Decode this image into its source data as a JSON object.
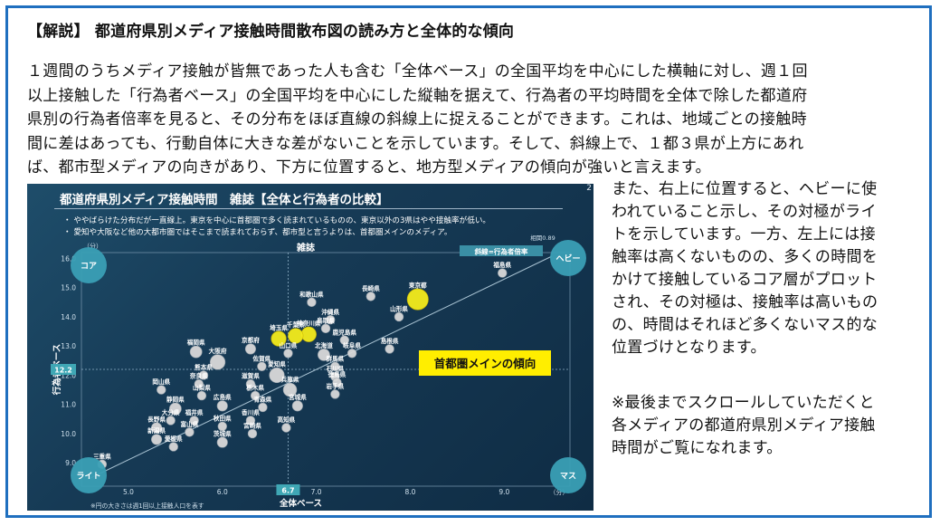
{
  "heading": "【解説】 都道府県別メディア接触時間散布図の読み方と全体的な傾向",
  "intro_lines": [
    "１週間のうちメディア接触が皆無であった人も含む「全体ベース」の全国平均を中心にした横軸に対し、週１回",
    "以上接触した「行為者ベース」の全国平均を中心にした縦軸を据えて、行為者の平均時間を全体で除した都道府",
    "県別の行為者倍率を見ると、その分布をほぼ直線の斜線上に捉えることができます。これは、地域ごとの接触時",
    "間に差はあっても、行動自体に大きな差がないことを示しています。そして、斜線上で、１都３県が上方にあれ",
    "ば、都市型メディアの向きがあり、下方に位置すると、地方型メディアの傾向が強いと言えます。"
  ],
  "side_lines": [
    "また、右上に位置すると、ヘビーに使",
    "われていること示し、その対極がライ",
    "トを示しています。一方、左上には接",
    "触率は高くないものの、多くの時間を",
    "かけて接触しているコア層がプロット",
    "され、その対極は、接触率は高いもの",
    "の、時間はそれほど多くないマス的な",
    "位置づけとなります。"
  ],
  "note_lines": [
    "※最後までスクロールしていただくと",
    "各メディアの都道府県別メディア接触",
    "時間がご覧になれます。"
  ],
  "slide": {
    "title": "都道府県別メディア接触時間　雑誌【全体と行為者の比較】",
    "page_number": "2",
    "bullets": [
      "・ ややばらけた分布だが一直線上。東京を中心に首都圏で多く読まれているものの、東京以外の3県はやや接触率が低い。",
      "・ 愛知や大阪など他の大都市圏ではそこまで読まれておらず、都市型と言うよりは、首都圏メインのメディア。"
    ]
  },
  "chart_data": {
    "type": "scatter",
    "title": "雑誌",
    "xlabel": "全体ベース",
    "ylabel": "行為者ベース",
    "unit_x": "（分）",
    "unit_y": "（分）",
    "xlim": [
      4.5,
      9.7
    ],
    "ylim": [
      8.2,
      16.2
    ],
    "x_ticks": [
      "5.0",
      "6.0",
      "7.0",
      "8.0",
      "9.0"
    ],
    "x_tick_values": [
      5,
      6,
      7,
      8,
      9
    ],
    "y_ticks": [
      "9.0",
      "10.0",
      "11.0",
      "12.0",
      "13.0",
      "14.0",
      "15.0",
      "16.0"
    ],
    "y_tick_values": [
      9,
      10,
      11,
      12,
      13,
      14,
      15,
      16
    ],
    "x_average": "6.7",
    "x_average_value": 6.7,
    "y_average": "12.2",
    "y_average_value": 12.2,
    "diagonal_label": "斜線=行為者倍率",
    "correlation_label": "相関0.89",
    "highlight_label": "首都圏メインの傾向",
    "corner_labels": {
      "top_left": "コア",
      "top_right": "ヘビー",
      "bottom_left": "ライト",
      "bottom_right": "マス"
    },
    "footnote": "※円の大きさは週1回以上接触人口を表す",
    "colors": {
      "highlight_box": "#ffee00",
      "metro_points": "#f4ec1c",
      "other_points": "#d9d9d9",
      "axis_marker": "#3fa7b5",
      "corner_circle": "#3a9fb5"
    },
    "points": [
      {
        "name": "東京都",
        "x": 8.08,
        "y": 14.6,
        "size": 5,
        "metro": true
      },
      {
        "name": "福島県",
        "x": 8.98,
        "y": 15.5,
        "size": 1
      },
      {
        "name": "長崎県",
        "x": 7.58,
        "y": 14.7,
        "size": 1
      },
      {
        "name": "和歌山県",
        "x": 6.95,
        "y": 14.5,
        "size": 1
      },
      {
        "name": "神奈川県",
        "x": 6.92,
        "y": 13.4,
        "size": 3,
        "metro": true
      },
      {
        "name": "千葉県",
        "x": 6.78,
        "y": 13.35,
        "size": 3,
        "metro": true
      },
      {
        "name": "埼玉県",
        "x": 6.6,
        "y": 13.25,
        "size": 3,
        "metro": true
      },
      {
        "name": "沖縄県",
        "x": 7.15,
        "y": 13.9,
        "size": 1
      },
      {
        "name": "山形県",
        "x": 7.88,
        "y": 14.0,
        "size": 1
      },
      {
        "name": "鳥取県",
        "x": 7.1,
        "y": 13.6,
        "size": 1
      },
      {
        "name": "鹿児島県",
        "x": 7.3,
        "y": 13.2,
        "size": 1
      },
      {
        "name": "京都府",
        "x": 6.3,
        "y": 12.9,
        "size": 1.5
      },
      {
        "name": "山口県",
        "x": 6.7,
        "y": 12.75,
        "size": 1
      },
      {
        "name": "北海道",
        "x": 7.08,
        "y": 12.7,
        "size": 2
      },
      {
        "name": "岐阜県",
        "x": 7.38,
        "y": 12.75,
        "size": 1
      },
      {
        "name": "島根県",
        "x": 7.78,
        "y": 12.9,
        "size": 1
      },
      {
        "name": "福岡県",
        "x": 5.72,
        "y": 12.8,
        "size": 2
      },
      {
        "name": "大阪府",
        "x": 5.95,
        "y": 12.45,
        "size": 3
      },
      {
        "name": "佐賀県",
        "x": 6.42,
        "y": 12.3,
        "size": 1
      },
      {
        "name": "群馬県",
        "x": 7.2,
        "y": 12.3,
        "size": 1
      },
      {
        "name": "愛知県",
        "x": 6.58,
        "y": 12.0,
        "size": 3
      },
      {
        "name": "石川県",
        "x": 7.2,
        "y": 11.95,
        "size": 1
      },
      {
        "name": "熊本県",
        "x": 5.8,
        "y": 12.0,
        "size": 1
      },
      {
        "name": "奈良県",
        "x": 5.75,
        "y": 11.7,
        "size": 1
      },
      {
        "name": "滋賀県",
        "x": 6.3,
        "y": 11.7,
        "size": 1
      },
      {
        "name": "兵庫県",
        "x": 6.72,
        "y": 11.5,
        "size": 2.5
      },
      {
        "name": "徳島県",
        "x": 7.22,
        "y": 11.75,
        "size": 1
      },
      {
        "name": "岩手県",
        "x": 7.2,
        "y": 11.35,
        "size": 1
      },
      {
        "name": "岡山県",
        "x": 5.35,
        "y": 11.5,
        "size": 1
      },
      {
        "name": "山梨県",
        "x": 5.78,
        "y": 11.3,
        "size": 1
      },
      {
        "name": "栃木県",
        "x": 6.35,
        "y": 11.3,
        "size": 1
      },
      {
        "name": "広島県",
        "x": 6.0,
        "y": 10.95,
        "size": 1.5
      },
      {
        "name": "青森県",
        "x": 6.43,
        "y": 10.9,
        "size": 1
      },
      {
        "name": "宮城県",
        "x": 6.8,
        "y": 10.95,
        "size": 1.5
      },
      {
        "name": "静岡県",
        "x": 5.5,
        "y": 10.85,
        "size": 2
      },
      {
        "name": "大分県",
        "x": 5.45,
        "y": 10.45,
        "size": 1
      },
      {
        "name": "福井県",
        "x": 5.7,
        "y": 10.45,
        "size": 1
      },
      {
        "name": "長野県",
        "x": 5.3,
        "y": 10.2,
        "size": 1.5
      },
      {
        "name": "香川県",
        "x": 6.3,
        "y": 10.45,
        "size": 1
      },
      {
        "name": "秋田県",
        "x": 6.0,
        "y": 10.25,
        "size": 1
      },
      {
        "name": "高知県",
        "x": 6.68,
        "y": 10.2,
        "size": 1
      },
      {
        "name": "富山県",
        "x": 5.65,
        "y": 10.05,
        "size": 1
      },
      {
        "name": "宮崎県",
        "x": 6.32,
        "y": 10.0,
        "size": 1
      },
      {
        "name": "新潟県",
        "x": 5.3,
        "y": 9.8,
        "size": 1.5
      },
      {
        "name": "愛媛県",
        "x": 5.48,
        "y": 9.55,
        "size": 1
      },
      {
        "name": "茨城県",
        "x": 6.0,
        "y": 9.7,
        "size": 1.5
      },
      {
        "name": "三重県",
        "x": 4.72,
        "y": 8.95,
        "size": 1
      }
    ]
  }
}
